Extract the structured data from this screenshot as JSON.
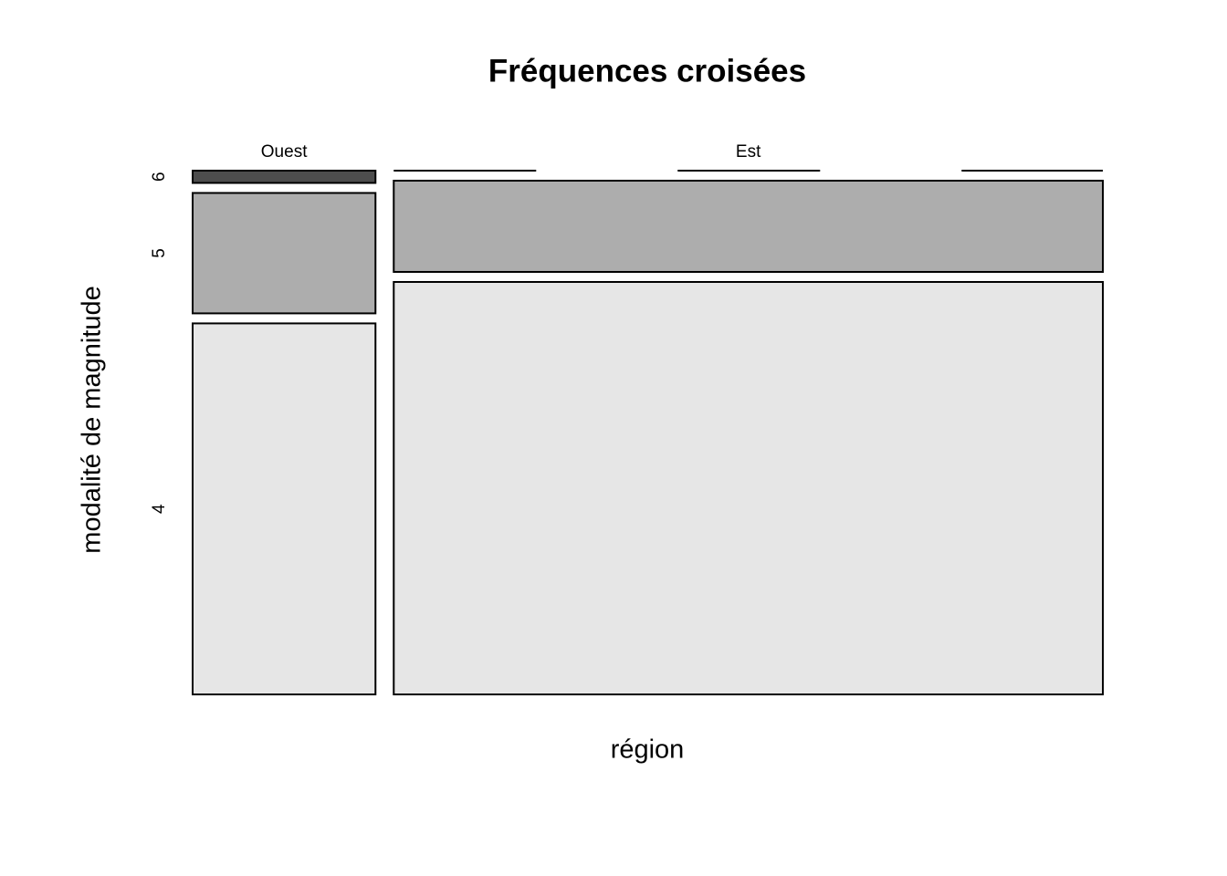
{
  "chart_data": {
    "type": "mosaic",
    "title": "Fréquences croisées",
    "x_label": "région",
    "y_label": "modalité de magnitude",
    "categories": [
      "Ouest",
      "Est"
    ],
    "series": [
      {
        "name": "4",
        "color": "#e6e6e6",
        "values": [
          15.1,
          65.1
        ]
      },
      {
        "name": "5",
        "color": "#adadad",
        "values": [
          4.9,
          14.4
        ]
      },
      {
        "name": "6",
        "color": "#4d4d4d",
        "values": [
          0.5,
          0
        ]
      }
    ]
  }
}
